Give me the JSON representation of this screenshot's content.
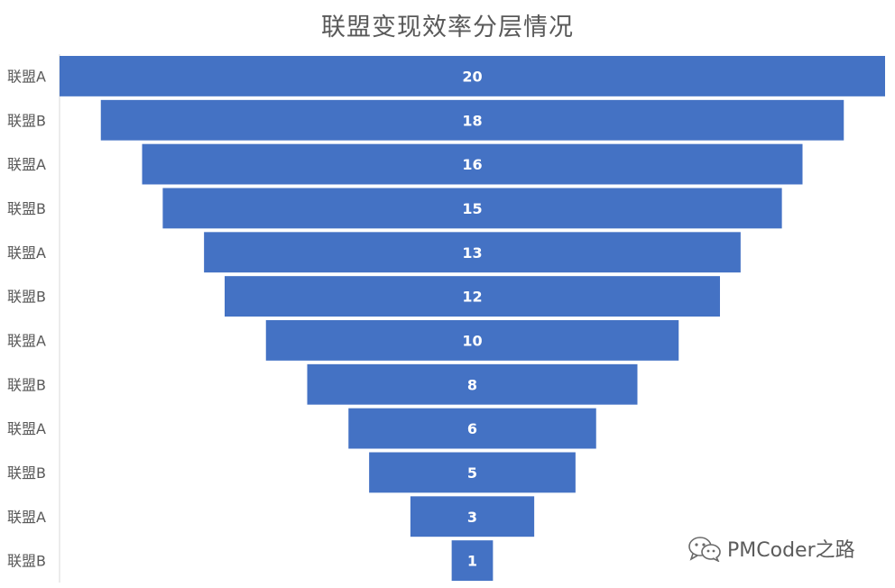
{
  "chart_data": {
    "type": "bar",
    "title": "联盟变现效率分层情况",
    "categories": [
      "联盟A",
      "联盟B",
      "联盟A",
      "联盟B",
      "联盟A",
      "联盟B",
      "联盟A",
      "联盟B",
      "联盟A",
      "联盟B",
      "联盟A",
      "联盟B"
    ],
    "values": [
      20,
      18,
      16,
      15,
      13,
      12,
      10,
      8,
      6,
      5,
      3,
      1
    ],
    "xlabel": "",
    "ylabel": "",
    "grid": false,
    "legend": "none",
    "layout": "funnel-centered-horizontal",
    "bar_color": "#4472C4",
    "label_color": "#ffffff"
  },
  "watermark": {
    "text": "PMCoder之路",
    "icon": "wechat-icon"
  }
}
